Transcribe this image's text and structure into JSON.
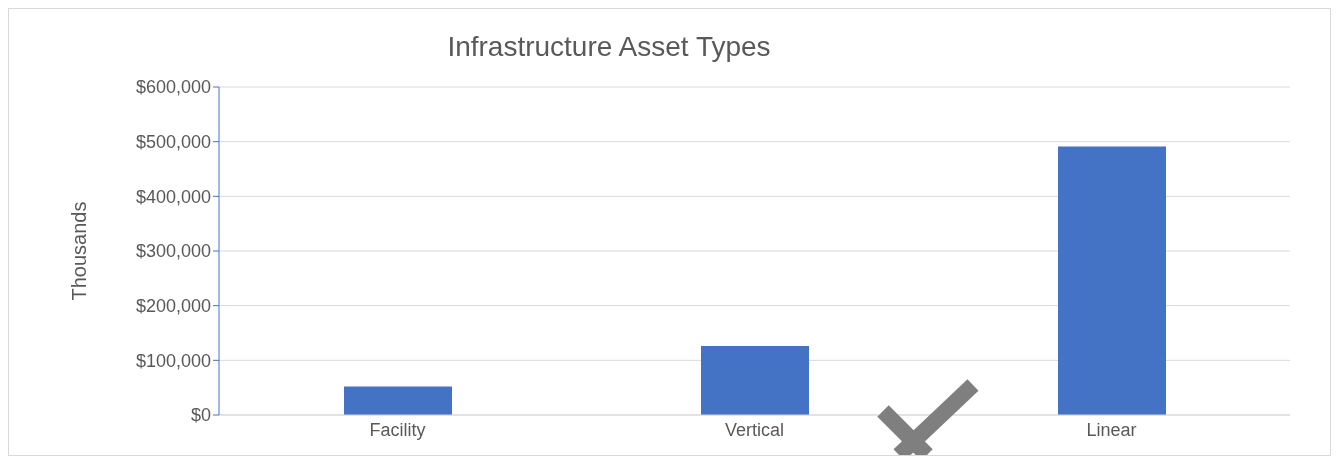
{
  "chart_data": {
    "type": "bar",
    "title": "Infrastructure Asset Types",
    "ylabel": "Thousands",
    "categories": [
      "Facility",
      "Vertical",
      "Linear"
    ],
    "values": [
      52000,
      126000,
      491000
    ],
    "color": "#4472c4",
    "ylim": [
      0,
      600000
    ],
    "yticks": [
      {
        "value": 0,
        "label": "$0"
      },
      {
        "value": 100000,
        "label": "$100,000"
      },
      {
        "value": 200000,
        "label": "$200,000"
      },
      {
        "value": 300000,
        "label": "$300,000"
      },
      {
        "value": 400000,
        "label": "$400,000"
      },
      {
        "value": 500000,
        "label": "$500,000"
      },
      {
        "value": 600000,
        "label": "$600,000"
      }
    ],
    "grid": "y",
    "legend": false
  }
}
